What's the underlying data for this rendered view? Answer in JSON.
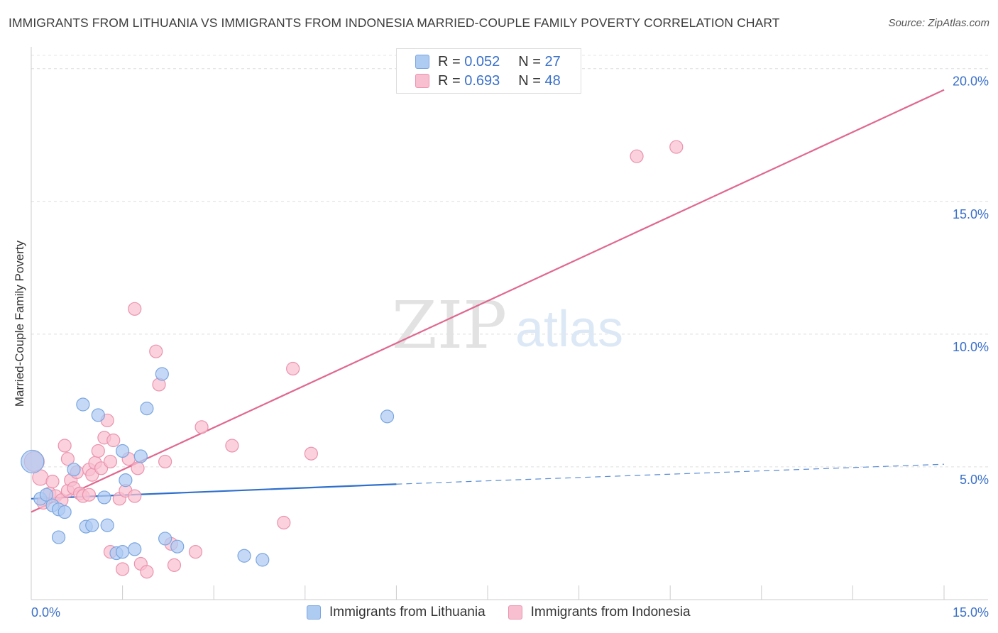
{
  "header": {
    "title": "IMMIGRANTS FROM LITHUANIA VS IMMIGRANTS FROM INDONESIA MARRIED-COUPLE FAMILY POVERTY CORRELATION CHART",
    "source": "Source: ZipAtlas.com"
  },
  "watermark": {
    "zip": "ZIP",
    "atlas": "atlas"
  },
  "legend": {
    "rows": [
      {
        "r_label": "R =",
        "r_value": "0.052",
        "n_label": "N =",
        "n_value": "27"
      },
      {
        "r_label": "R =",
        "r_value": "0.693",
        "n_label": "N =",
        "n_value": "48"
      }
    ]
  },
  "chart_data": {
    "type": "scatter",
    "title": "IMMIGRANTS FROM LITHUANIA VS IMMIGRANTS FROM INDONESIA MARRIED-COUPLE FAMILY POVERTY CORRELATION CHART",
    "xlabel": "",
    "ylabel": "Married-Couple Family Poverty",
    "xlim": [
      0,
      15
    ],
    "ylim": [
      0,
      20.5
    ],
    "x_tick_labels": [
      "0.0%",
      "15.0%"
    ],
    "y_ticks": [
      5,
      10,
      15,
      20
    ],
    "y_tick_labels": [
      "5.0%",
      "10.0%",
      "15.0%",
      "20.0%"
    ],
    "grid": true,
    "colors": {
      "lithuania_fill": "#aecbf2",
      "lithuania_stroke": "#7aa6e0",
      "lithuania_line": "#2f6fcc",
      "indonesia_fill": "#f8bfd0",
      "indonesia_stroke": "#eb93ae",
      "indonesia_line": "#e0688f",
      "tick_label": "#3a70c8"
    },
    "series": [
      {
        "name": "Immigrants from Lithuania",
        "r": 0.052,
        "n": 27,
        "trend": {
          "x0": 0,
          "y0": 3.8,
          "x1": 6.0,
          "y1": 4.35,
          "dashed_x1": 15.0,
          "dashed_y1": 5.1
        },
        "points": [
          [
            0.02,
            5.2,
            16
          ],
          [
            0.15,
            3.8,
            9
          ],
          [
            0.25,
            3.95,
            9
          ],
          [
            0.35,
            3.55,
            9
          ],
          [
            0.45,
            3.4,
            9
          ],
          [
            0.55,
            3.3,
            9
          ],
          [
            0.45,
            2.35,
            9
          ],
          [
            0.85,
            7.35,
            9
          ],
          [
            0.9,
            2.75,
            9
          ],
          [
            1.0,
            2.8,
            9
          ],
          [
            1.1,
            6.95,
            9
          ],
          [
            1.2,
            3.85,
            9
          ],
          [
            1.25,
            2.8,
            9
          ],
          [
            1.4,
            1.75,
            9
          ],
          [
            1.5,
            1.8,
            9
          ],
          [
            1.5,
            5.6,
            9
          ],
          [
            1.55,
            4.5,
            9
          ],
          [
            1.7,
            1.9,
            9
          ],
          [
            1.8,
            5.4,
            9
          ],
          [
            1.9,
            7.2,
            9
          ],
          [
            2.15,
            8.5,
            9
          ],
          [
            2.2,
            2.3,
            9
          ],
          [
            2.4,
            2.0,
            9
          ],
          [
            3.5,
            1.65,
            9
          ],
          [
            3.8,
            1.5,
            9
          ],
          [
            5.85,
            6.9,
            9
          ],
          [
            0.7,
            4.9,
            9
          ]
        ]
      },
      {
        "name": "Immigrants from Indonesia",
        "r": 0.693,
        "n": 48,
        "trend": {
          "x0": 0,
          "y0": 3.3,
          "x1": 15.0,
          "y1": 19.2
        },
        "points": [
          [
            0.05,
            5.2,
            14
          ],
          [
            0.15,
            4.6,
            11
          ],
          [
            0.3,
            4.0,
            9
          ],
          [
            0.4,
            3.9,
            9
          ],
          [
            0.5,
            3.75,
            9
          ],
          [
            0.6,
            4.1,
            9
          ],
          [
            0.65,
            4.5,
            9
          ],
          [
            0.7,
            4.2,
            9
          ],
          [
            0.55,
            5.8,
            9
          ],
          [
            0.6,
            5.3,
            9
          ],
          [
            0.75,
            4.8,
            9
          ],
          [
            0.8,
            4.0,
            9
          ],
          [
            0.85,
            3.9,
            9
          ],
          [
            0.95,
            4.9,
            9
          ],
          [
            1.0,
            4.7,
            9
          ],
          [
            1.05,
            5.15,
            9
          ],
          [
            1.1,
            5.6,
            9
          ],
          [
            1.15,
            4.95,
            9
          ],
          [
            1.2,
            6.1,
            9
          ],
          [
            1.25,
            6.75,
            9
          ],
          [
            1.3,
            5.2,
            9
          ],
          [
            1.35,
            6.0,
            9
          ],
          [
            1.3,
            1.8,
            9
          ],
          [
            1.45,
            3.8,
            9
          ],
          [
            1.5,
            1.15,
            9
          ],
          [
            1.55,
            4.1,
            9
          ],
          [
            1.6,
            5.3,
            9
          ],
          [
            1.7,
            10.95,
            9
          ],
          [
            1.7,
            3.9,
            9
          ],
          [
            1.75,
            4.95,
            9
          ],
          [
            1.8,
            1.35,
            9
          ],
          [
            1.9,
            1.05,
            9
          ],
          [
            2.05,
            9.35,
            9
          ],
          [
            2.1,
            8.1,
            9
          ],
          [
            2.2,
            5.2,
            9
          ],
          [
            2.3,
            2.1,
            9
          ],
          [
            2.35,
            1.3,
            9
          ],
          [
            2.7,
            1.8,
            9
          ],
          [
            2.8,
            6.5,
            9
          ],
          [
            3.3,
            5.8,
            9
          ],
          [
            4.15,
            2.9,
            9
          ],
          [
            4.3,
            8.7,
            9
          ],
          [
            4.6,
            5.5,
            9
          ],
          [
            9.95,
            16.7,
            9
          ],
          [
            10.6,
            17.05,
            9
          ],
          [
            0.35,
            4.45,
            9
          ],
          [
            0.95,
            3.95,
            9
          ],
          [
            0.2,
            3.65,
            9
          ]
        ]
      }
    ]
  },
  "bottom_legend": {
    "items": [
      {
        "label": "Immigrants from Lithuania"
      },
      {
        "label": "Immigrants from Indonesia"
      }
    ]
  }
}
